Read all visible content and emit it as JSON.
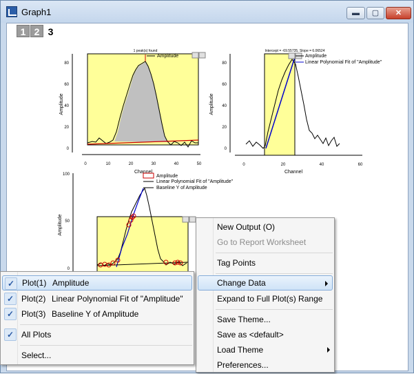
{
  "window": {
    "title": "Graph1"
  },
  "window_buttons": {
    "minimize": "▬",
    "maximize": "▢",
    "close": "✕"
  },
  "layers": [
    {
      "label": "1"
    },
    {
      "label": "2"
    },
    {
      "label": "3"
    }
  ],
  "graph1": {
    "title": "1 peak(s) found",
    "legend": "Amplitude",
    "xlabel": "Channel",
    "ylabel": "Amplitude",
    "xticks": [
      "0",
      "10",
      "20",
      "30",
      "40",
      "50"
    ],
    "yticks": [
      "0",
      "20",
      "40",
      "60",
      "80"
    ]
  },
  "graph2": {
    "title": "Intercept = -69.55735, Slope = 6.06524",
    "legend": [
      "Amplitude",
      "Linear Polynomial Fit of \"Amplitude\""
    ],
    "xlabel": "Channel",
    "ylabel": "Amplitude",
    "xticks": [
      "0",
      "20",
      "40",
      "60"
    ],
    "yticks": [
      "0",
      "20",
      "40",
      "60",
      "80"
    ]
  },
  "graph3": {
    "legend": [
      "Amplitude",
      "Linear Polynomial Fit of \"Amplitude\"",
      "Baseline Y of Amplitude"
    ],
    "ylabel": "Amplitude",
    "yticks": [
      "0",
      "50",
      "100"
    ]
  },
  "context_menu": {
    "items": [
      {
        "label": "New Output (O)",
        "enabled": true
      },
      {
        "label": "Go to Report Worksheet",
        "enabled": false
      },
      {
        "label": "Tag Points",
        "enabled": true
      },
      {
        "label": "Change Data",
        "enabled": true,
        "submenu": true,
        "highlighted": true
      },
      {
        "label": "Expand to Full Plot(s) Range",
        "enabled": true
      },
      {
        "label": "Save Theme...",
        "enabled": true
      },
      {
        "label": "Save as <default>",
        "enabled": true
      },
      {
        "label": "Load Theme",
        "enabled": true,
        "submenu": true
      },
      {
        "label": "Preferences...",
        "enabled": true
      }
    ]
  },
  "submenu": {
    "plots": [
      {
        "index": "Plot(1)",
        "name": "Amplitude",
        "checked": true,
        "highlighted": true
      },
      {
        "index": "Plot(2)",
        "name": "Linear Polynomial Fit of \"Amplitude\"",
        "checked": true
      },
      {
        "index": "Plot(3)",
        "name": "Baseline Y of Amplitude",
        "checked": true
      }
    ],
    "all_plots": {
      "label": "All Plots",
      "checked": true
    },
    "select": {
      "label": "Select..."
    }
  },
  "colors": {
    "panel_fill": "#ffff99",
    "peak_fill": "#c0c0c0",
    "baseline": "#cc0000",
    "fit_line": "#0000cc"
  }
}
